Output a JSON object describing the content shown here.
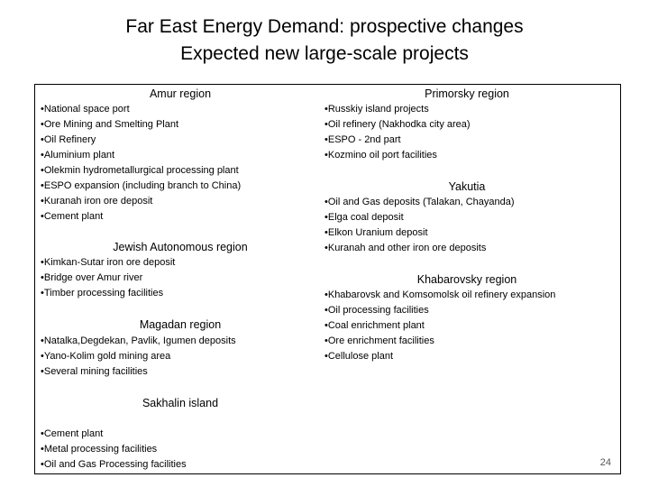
{
  "header": {
    "title_lines": [
      "Far East Energy Demand: prospective changes",
      "Expected new large-scale projects"
    ]
  },
  "sections": [
    {
      "heading": "Amur region",
      "items": [
        "•National space port",
        "•Ore Mining and Smelting Plant",
        "•Oil Refinery",
        "•Aluminium plant",
        "•Olekmin hydrometallurgical processing plant",
        "•ESPO expansion (including branch to China)",
        "•Kuranah iron ore deposit",
        "•Cement plant"
      ]
    },
    {
      "heading": "Jewish Autonomous region",
      "items": [
        "•Kimkan-Sutar iron ore deposit",
        "•Bridge over Amur river",
        "•Timber processing facilities"
      ]
    },
    {
      "heading": "Magadan region",
      "items": [
        "•Natalka,Degdekan, Pavlik, Igumen deposits",
        "•Yano-Kolim gold mining area",
        "•Several mining facilities"
      ]
    },
    {
      "heading": "Sakhalin island",
      "items": [
        "•Cement plant",
        "•Metal processing facilities",
        "•Oil and Gas Processing facilities"
      ]
    },
    {
      "heading": "Primorsky region",
      "items": [
        "•Russkiy island projects",
        "•Oil refinery (Nakhodka city area)",
        "•ESPO - 2nd part",
        "•Kozmino oil port facilities"
      ]
    },
    {
      "heading": "Yakutia",
      "items": [
        "•Oil and Gas deposits (Talakan, Chayanda)",
        "•Elga coal deposit",
        "•Elkon Uranium deposit",
        "•Kuranah and other iron ore deposits"
      ]
    },
    {
      "heading": "Khabarovsky region",
      "items": [
        "•Khabarovsk and Komsomolsk oil refinery expansion",
        "•Oil processing facilities",
        "•Coal enrichment plant",
        "•Ore enrichment facilities",
        "•Cellulose plant"
      ]
    }
  ],
  "page_number": "24"
}
